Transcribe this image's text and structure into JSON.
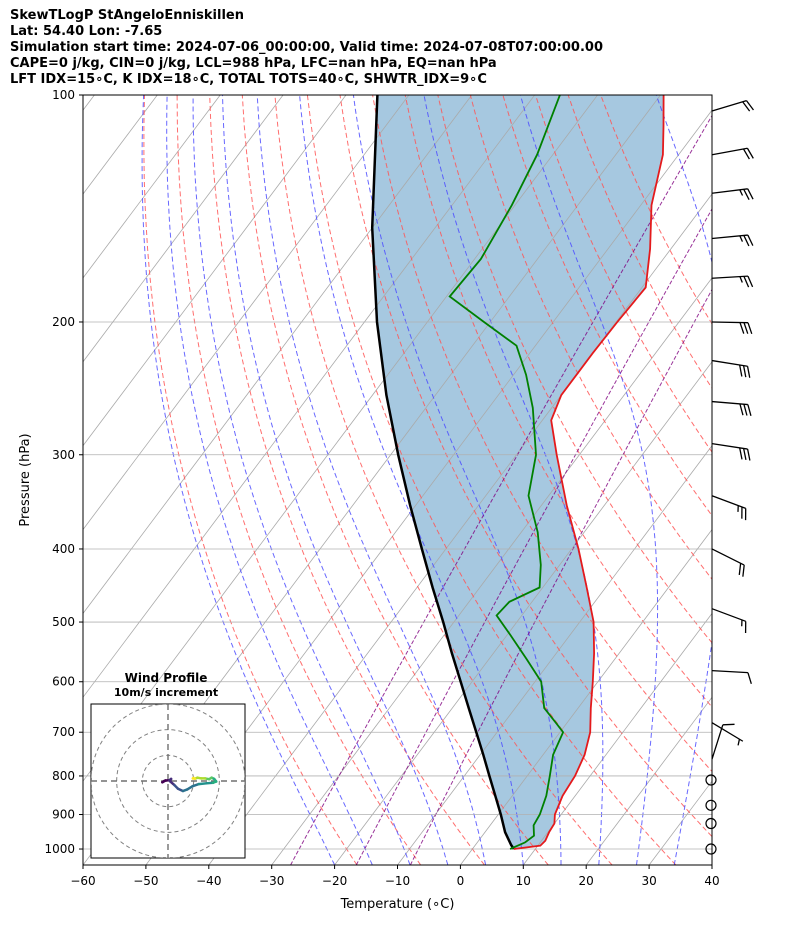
{
  "header": {
    "line1": "SkewTLogP StAngeloEnniskillen",
    "line2": "Lat: 54.40   Lon: -7.65",
    "line3": "Simulation start time: 2024-07-06_00:00:00, Valid time: 2024-07-08T07:00:00.00",
    "line4": "CAPE=0 j/kg, CIN=0 j/kg, LCL=988 hPa, LFC=nan hPa, EQ=nan hPa",
    "line5": "LFT IDX=15∘C, K IDX=18∘C, TOTAL TOTS=40∘C, SHWTR_IDX=9∘C"
  },
  "chart_data": {
    "type": "skewt",
    "xlabel": "Temperature (∘C)",
    "ylabel": "Pressure (hPa)",
    "xlim": [
      -60,
      40
    ],
    "ylim": [
      1050,
      100
    ],
    "y_scale": "log",
    "x_ticks": [
      -60,
      -50,
      -40,
      -30,
      -20,
      -10,
      0,
      10,
      20,
      30,
      40
    ],
    "y_ticks": [
      1000,
      900,
      800,
      700,
      600,
      500,
      400,
      300,
      200,
      100
    ],
    "grid": true,
    "colors": {
      "temperature": "#e41a1c",
      "dewpoint": "#008000",
      "parcel": "#000000",
      "cape_fill": "#a6c8e0",
      "dry_adiabat": "#ff5555",
      "moist_adiabat": "#4d4dff",
      "mixing_ratio": "#800080",
      "isotherm": "#aaaaaa"
    },
    "temperature": [
      {
        "p": 1000,
        "t": 6.6
      },
      {
        "p": 990,
        "t": 10.4
      },
      {
        "p": 975,
        "t": 10.6
      },
      {
        "p": 950,
        "t": 10.2
      },
      {
        "p": 925,
        "t": 10.0
      },
      {
        "p": 900,
        "t": 9.0
      },
      {
        "p": 850,
        "t": 8.0
      },
      {
        "p": 800,
        "t": 7.6
      },
      {
        "p": 750,
        "t": 6.6
      },
      {
        "p": 700,
        "t": 4.8
      },
      {
        "p": 650,
        "t": 2.0
      },
      {
        "p": 600,
        "t": -0.8
      },
      {
        "p": 550,
        "t": -4.0
      },
      {
        "p": 500,
        "t": -7.8
      },
      {
        "p": 450,
        "t": -13.0
      },
      {
        "p": 400,
        "t": -18.9
      },
      {
        "p": 350,
        "t": -26.0
      },
      {
        "p": 300,
        "t": -33.6
      },
      {
        "p": 270,
        "t": -38.6
      },
      {
        "p": 250,
        "t": -40.0
      },
      {
        "p": 220,
        "t": -40.0
      },
      {
        "p": 200,
        "t": -39.8
      },
      {
        "p": 180,
        "t": -39.4
      },
      {
        "p": 160,
        "t": -43.3
      },
      {
        "p": 140,
        "t": -48.3
      },
      {
        "p": 120,
        "t": -52.5
      },
      {
        "p": 110,
        "t": -55.8
      },
      {
        "p": 100,
        "t": -59.5
      }
    ],
    "dewpoint": [
      {
        "p": 1000,
        "t": 6.0
      },
      {
        "p": 980,
        "t": 7.6
      },
      {
        "p": 960,
        "t": 8.2
      },
      {
        "p": 930,
        "t": 6.9
      },
      {
        "p": 900,
        "t": 6.6
      },
      {
        "p": 850,
        "t": 5.4
      },
      {
        "p": 800,
        "t": 3.6
      },
      {
        "p": 750,
        "t": 1.6
      },
      {
        "p": 700,
        "t": 0.5
      },
      {
        "p": 680,
        "t": -1.8
      },
      {
        "p": 650,
        "t": -5.4
      },
      {
        "p": 600,
        "t": -9.0
      },
      {
        "p": 560,
        "t": -14.0
      },
      {
        "p": 520,
        "t": -19.5
      },
      {
        "p": 490,
        "t": -24.0
      },
      {
        "p": 470,
        "t": -23.6
      },
      {
        "p": 450,
        "t": -20.5
      },
      {
        "p": 420,
        "t": -23.0
      },
      {
        "p": 380,
        "t": -27.4
      },
      {
        "p": 340,
        "t": -33.2
      },
      {
        "p": 300,
        "t": -36.9
      },
      {
        "p": 260,
        "t": -43.0
      },
      {
        "p": 235,
        "t": -48.0
      },
      {
        "p": 215,
        "t": -53.0
      },
      {
        "p": 200,
        "t": -61.0
      },
      {
        "p": 185,
        "t": -69.5
      },
      {
        "p": 165,
        "t": -69.0
      },
      {
        "p": 140,
        "t": -70.5
      },
      {
        "p": 120,
        "t": -72.5
      },
      {
        "p": 100,
        "t": -76.0
      }
    ],
    "parcel": [
      {
        "p": 1000,
        "t": 6.6
      },
      {
        "p": 988,
        "t": 5.7
      },
      {
        "p": 950,
        "t": 3.2
      },
      {
        "p": 900,
        "t": 0.4
      },
      {
        "p": 850,
        "t": -2.7
      },
      {
        "p": 800,
        "t": -6.0
      },
      {
        "p": 750,
        "t": -9.5
      },
      {
        "p": 700,
        "t": -13.3
      },
      {
        "p": 650,
        "t": -17.4
      },
      {
        "p": 600,
        "t": -21.8
      },
      {
        "p": 550,
        "t": -26.6
      },
      {
        "p": 500,
        "t": -31.7
      },
      {
        "p": 450,
        "t": -37.5
      },
      {
        "p": 400,
        "t": -43.8
      },
      {
        "p": 350,
        "t": -50.9
      },
      {
        "p": 300,
        "t": -58.8
      },
      {
        "p": 250,
        "t": -67.8
      },
      {
        "p": 200,
        "t": -78.0
      },
      {
        "p": 150,
        "t": -90.0
      },
      {
        "p": 100,
        "t": -105.0
      }
    ],
    "isotherms": [
      -160,
      -150,
      -140,
      -130,
      -120,
      -110,
      -100,
      -90,
      -80,
      -70,
      -60,
      -50,
      -40,
      -30,
      -20,
      -10,
      0,
      10,
      20,
      30,
      40
    ],
    "dry_adiabats_theta_c": [
      -20,
      -10,
      0,
      10,
      20,
      30,
      40,
      50,
      60,
      70,
      80,
      90,
      100,
      110,
      120
    ],
    "moist_adiabats_start_t": [
      -20,
      -14,
      -8,
      -2,
      4,
      10,
      16,
      22,
      28,
      34,
      40
    ],
    "mixing_ratios_gkg": [
      0.4,
      1,
      2
    ],
    "wind_barbs": [
      {
        "p": 1000,
        "u": -1.2,
        "v": -0.2
      },
      {
        "p": 925,
        "u": 0.0,
        "v": 0.0
      },
      {
        "p": 875,
        "u": 0.0,
        "v": 0.0
      },
      {
        "p": 810,
        "u": 0.0,
        "v": 0.0
      },
      {
        "p": 760,
        "u": -1.2,
        "v": -3.8
      },
      {
        "p": 680,
        "u": -3.0,
        "v": 1.8
      },
      {
        "p": 580,
        "u": -5.4,
        "v": 0.3
      },
      {
        "p": 480,
        "u": -8.0,
        "v": 3.0
      },
      {
        "p": 400,
        "u": -10.0,
        "v": 5.0
      },
      {
        "p": 340,
        "u": -12.0,
        "v": 4.5
      },
      {
        "p": 290,
        "u": -14.5,
        "v": 2.2
      },
      {
        "p": 255,
        "u": -15.5,
        "v": 1.3
      },
      {
        "p": 225,
        "u": -15.5,
        "v": 2.5
      },
      {
        "p": 200,
        "u": -15.0,
        "v": 0.3
      },
      {
        "p": 175,
        "u": -13.5,
        "v": -0.8
      },
      {
        "p": 155,
        "u": -12.5,
        "v": -1.2
      },
      {
        "p": 135,
        "u": -12.0,
        "v": -1.5
      },
      {
        "p": 120,
        "u": -11.0,
        "v": -2.0
      },
      {
        "p": 105,
        "u": -10.0,
        "v": -3.0
      }
    ],
    "hodograph": {
      "title": "Wind Profile",
      "subtitle": "10m/s increment",
      "ring_step_ms": 10,
      "max_ring_ms": 30,
      "points": [
        {
          "u": -1.5,
          "v": 0.0
        },
        {
          "u": -2.2,
          "v": -0.5
        },
        {
          "u": -1.0,
          "v": 0.2
        },
        {
          "u": 0.5,
          "v": 0.3
        },
        {
          "u": 1.2,
          "v": 0.8
        },
        {
          "u": 0.8,
          "v": -0.1
        },
        {
          "u": 2.5,
          "v": -1.6
        },
        {
          "u": 3.9,
          "v": -3.0
        },
        {
          "u": 5.8,
          "v": -3.9
        },
        {
          "u": 7.5,
          "v": -3.3
        },
        {
          "u": 9.6,
          "v": -2.0
        },
        {
          "u": 12.0,
          "v": -1.2
        },
        {
          "u": 15.0,
          "v": -0.9
        },
        {
          "u": 17.5,
          "v": -0.7
        },
        {
          "u": 18.8,
          "v": -0.2
        },
        {
          "u": 18.0,
          "v": 0.8
        },
        {
          "u": 17.0,
          "v": 1.3
        },
        {
          "u": 16.0,
          "v": 0.7
        },
        {
          "u": 14.5,
          "v": 1.0
        },
        {
          "u": 13.0,
          "v": 1.0
        },
        {
          "u": 11.5,
          "v": 1.3
        },
        {
          "u": 10.5,
          "v": 0.9
        },
        {
          "u": 9.7,
          "v": 1.0
        },
        {
          "u": 10.0,
          "v": 1.2
        }
      ]
    }
  }
}
